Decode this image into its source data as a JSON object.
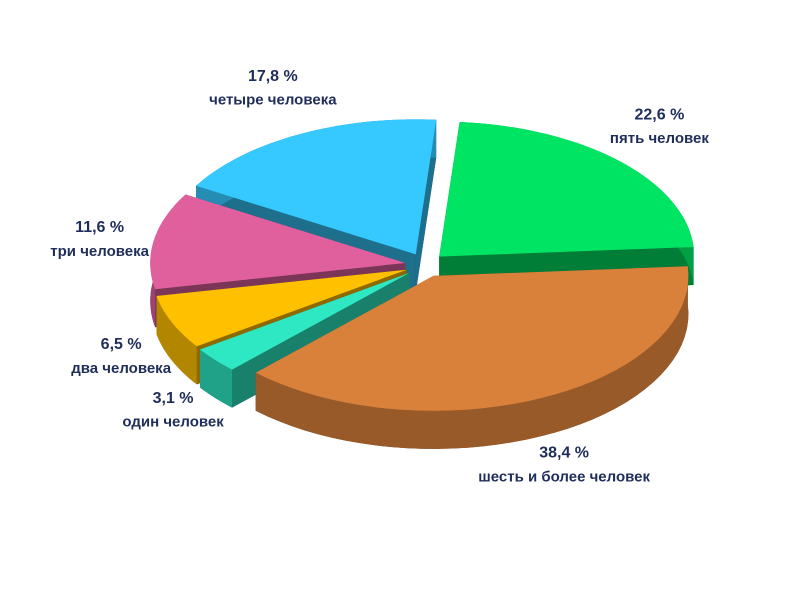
{
  "chart_data": {
    "type": "pie",
    "categories": [
      "пять человек",
      "шесть и более человек",
      "один человек",
      "два человека",
      "три человека",
      "четыре человека"
    ],
    "values": [
      22.6,
      38.4,
      3.1,
      6.5,
      11.6,
      17.8
    ],
    "value_labels": [
      "22,6 %",
      "38,4 %",
      "3,1 %",
      "6,5 %",
      "11,6 %",
      "17,8 %"
    ],
    "colors": [
      "#00e464",
      "#d9803a",
      "#2ee8c4",
      "#ffc000",
      "#e0609e",
      "#35c9ff"
    ]
  }
}
